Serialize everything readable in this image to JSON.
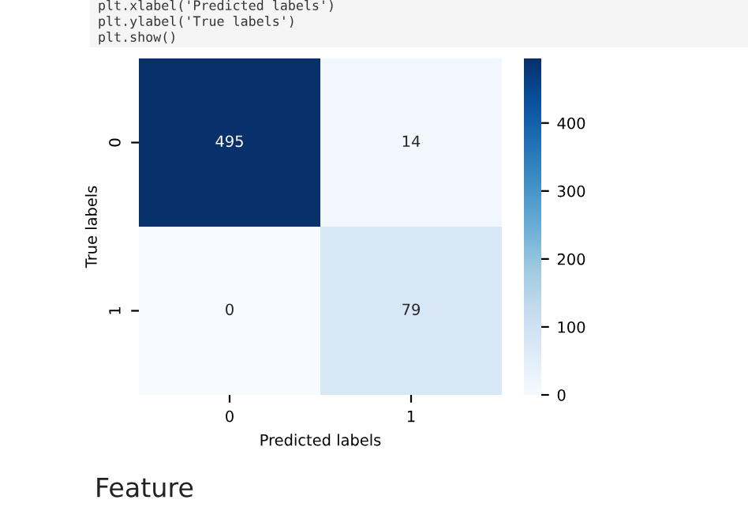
{
  "chart_data": {
    "type": "heatmap",
    "xlabel": "Predicted labels",
    "ylabel": "True labels",
    "categories": [
      "0",
      "1"
    ],
    "y_categories": [
      "0",
      "1"
    ],
    "cells": [
      [
        495,
        14
      ],
      [
        0,
        79
      ]
    ],
    "clim": [
      0,
      495
    ],
    "cticks": [
      0,
      100,
      200,
      300,
      400
    ],
    "data_labels": true,
    "annotations": [
      "plt.xlabel('Predicted labels')",
      "plt.ylabel('True labels')",
      "plt.show()",
      "Feature"
    ]
  }
}
